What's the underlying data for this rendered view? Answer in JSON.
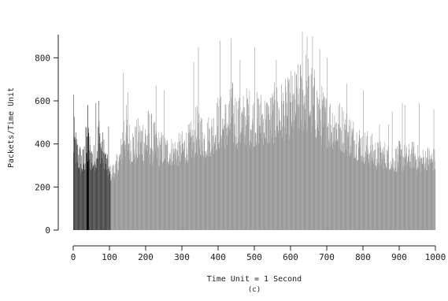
{
  "chart_data": {
    "type": "bar",
    "title": "",
    "xlabel": "Time Unit = 1 Second",
    "ylabel": "Packets/Time Unit",
    "caption": "(c)",
    "xlim": [
      0,
      1000
    ],
    "ylim": [
      0,
      900
    ],
    "x_ticks": [
      0,
      100,
      200,
      300,
      400,
      500,
      600,
      700,
      800,
      900,
      1000
    ],
    "y_ticks": [
      0,
      200,
      400,
      600,
      800
    ],
    "grid": false,
    "legend": "none",
    "series_colors": {
      "early": "#4d4d4d",
      "burst": "#0a0a0a",
      "main": "#9a9a9a"
    },
    "early_segment_end": 103,
    "burst_segment": [
      37,
      43
    ],
    "envelope": {
      "x": [
        0,
        10,
        25,
        40,
        55,
        70,
        85,
        100,
        115,
        130,
        140,
        155,
        170,
        190,
        210,
        230,
        250,
        270,
        290,
        310,
        330,
        345,
        360,
        380,
        400,
        420,
        440,
        460,
        480,
        500,
        520,
        540,
        560,
        580,
        600,
        620,
        640,
        660,
        680,
        700,
        720,
        740,
        760,
        780,
        800,
        820,
        840,
        860,
        880,
        900,
        920,
        940,
        960,
        980,
        1000
      ],
      "low": [
        230,
        220,
        200,
        210,
        220,
        230,
        240,
        200,
        210,
        220,
        230,
        240,
        230,
        220,
        210,
        230,
        240,
        250,
        240,
        250,
        260,
        270,
        260,
        270,
        280,
        290,
        280,
        290,
        300,
        300,
        310,
        300,
        310,
        320,
        320,
        330,
        320,
        310,
        300,
        290,
        280,
        280,
        270,
        260,
        250,
        240,
        230,
        240,
        230,
        220,
        230,
        240,
        230,
        240,
        230
      ],
      "high": [
        560,
        450,
        380,
        520,
        380,
        560,
        430,
        300,
        330,
        420,
        640,
        520,
        500,
        560,
        580,
        480,
        460,
        440,
        450,
        480,
        520,
        620,
        520,
        560,
        640,
        620,
        700,
        620,
        680,
        640,
        660,
        640,
        700,
        700,
        720,
        780,
        860,
        780,
        700,
        640,
        640,
        600,
        560,
        520,
        480,
        460,
        420,
        420,
        380,
        420,
        400,
        420,
        380,
        400,
        380
      ]
    },
    "peaks": [
      [
        0,
        630
      ],
      [
        34,
        480
      ],
      [
        40,
        580
      ],
      [
        62,
        590
      ],
      [
        70,
        600
      ],
      [
        97,
        480
      ],
      [
        138,
        730
      ],
      [
        150,
        640
      ],
      [
        228,
        670
      ],
      [
        250,
        650
      ],
      [
        332,
        780
      ],
      [
        345,
        850
      ],
      [
        405,
        880
      ],
      [
        435,
        890
      ],
      [
        460,
        790
      ],
      [
        500,
        850
      ],
      [
        560,
        790
      ],
      [
        600,
        740
      ],
      [
        632,
        920
      ],
      [
        645,
        900
      ],
      [
        660,
        900
      ],
      [
        680,
        840
      ],
      [
        700,
        800
      ],
      [
        755,
        680
      ],
      [
        800,
        650
      ],
      [
        845,
        490
      ],
      [
        870,
        490
      ],
      [
        880,
        550
      ],
      [
        908,
        590
      ],
      [
        915,
        580
      ],
      [
        955,
        590
      ],
      [
        995,
        560
      ]
    ]
  }
}
